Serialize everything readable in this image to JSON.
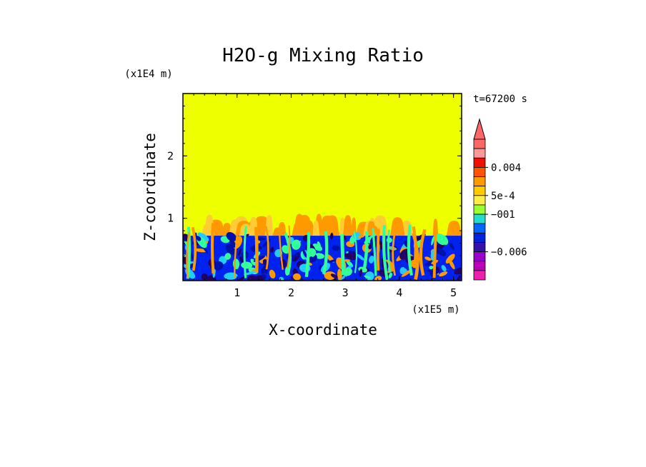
{
  "chart_data": {
    "type": "heatmap",
    "title": "H2O-g Mixing Ratio",
    "xlabel": "X-coordinate",
    "ylabel": "Z-coordinate",
    "x_scale_label": "(x1E5 m)",
    "y_scale_label": "(x1E4 m)",
    "time_label": "t=67200 s",
    "xlim": [
      0,
      5.15
    ],
    "ylim": [
      0,
      3.0
    ],
    "x_ticks": [
      {
        "value": 1,
        "label": "1"
      },
      {
        "value": 2,
        "label": "2"
      },
      {
        "value": 3,
        "label": "3"
      },
      {
        "value": 4,
        "label": "4"
      },
      {
        "value": 5,
        "label": "5"
      }
    ],
    "y_ticks": [
      {
        "value": 1,
        "label": "1"
      },
      {
        "value": 2,
        "label": "2"
      }
    ],
    "background_color": "#eeff00",
    "fields": {
      "upper_region": {
        "z_from": 1.05,
        "z_to": 3.0,
        "color": "#eeff00"
      },
      "plume_layer": {
        "z_from": 0.72,
        "z_to": 1.05,
        "colors": [
          "#ff9900",
          "#ffcc33"
        ]
      },
      "boundary_layer": {
        "z_from": 0.0,
        "z_to": 0.72,
        "colors": [
          "#0022ee",
          "#0011aa",
          "#22ccff",
          "#33ff99",
          "#ff9900",
          "#220066"
        ]
      }
    },
    "colorbar": {
      "has_max_arrow": true,
      "levels": [
        {
          "color": "#ff6666"
        },
        {
          "color": "#ff9999"
        },
        {
          "color": "#ee1100"
        },
        {
          "color": "#ff5500"
        },
        {
          "color": "#ff9900"
        },
        {
          "color": "#ffcc00"
        },
        {
          "color": "#ffee44"
        },
        {
          "color": "#99ff33"
        },
        {
          "color": "#22ddcc"
        },
        {
          "color": "#0066ff"
        },
        {
          "color": "#0022dd"
        },
        {
          "color": "#3311aa"
        },
        {
          "color": "#9900cc"
        },
        {
          "color": "#bb00bb"
        },
        {
          "color": "#ee22aa"
        }
      ],
      "labels": [
        {
          "text": "0.004",
          "level_index": 3
        },
        {
          "text": "5e-4",
          "level_index": 6
        },
        {
          "text": "−001",
          "level_index": 8
        },
        {
          "text": "−0.006",
          "level_index": 12
        }
      ]
    }
  }
}
